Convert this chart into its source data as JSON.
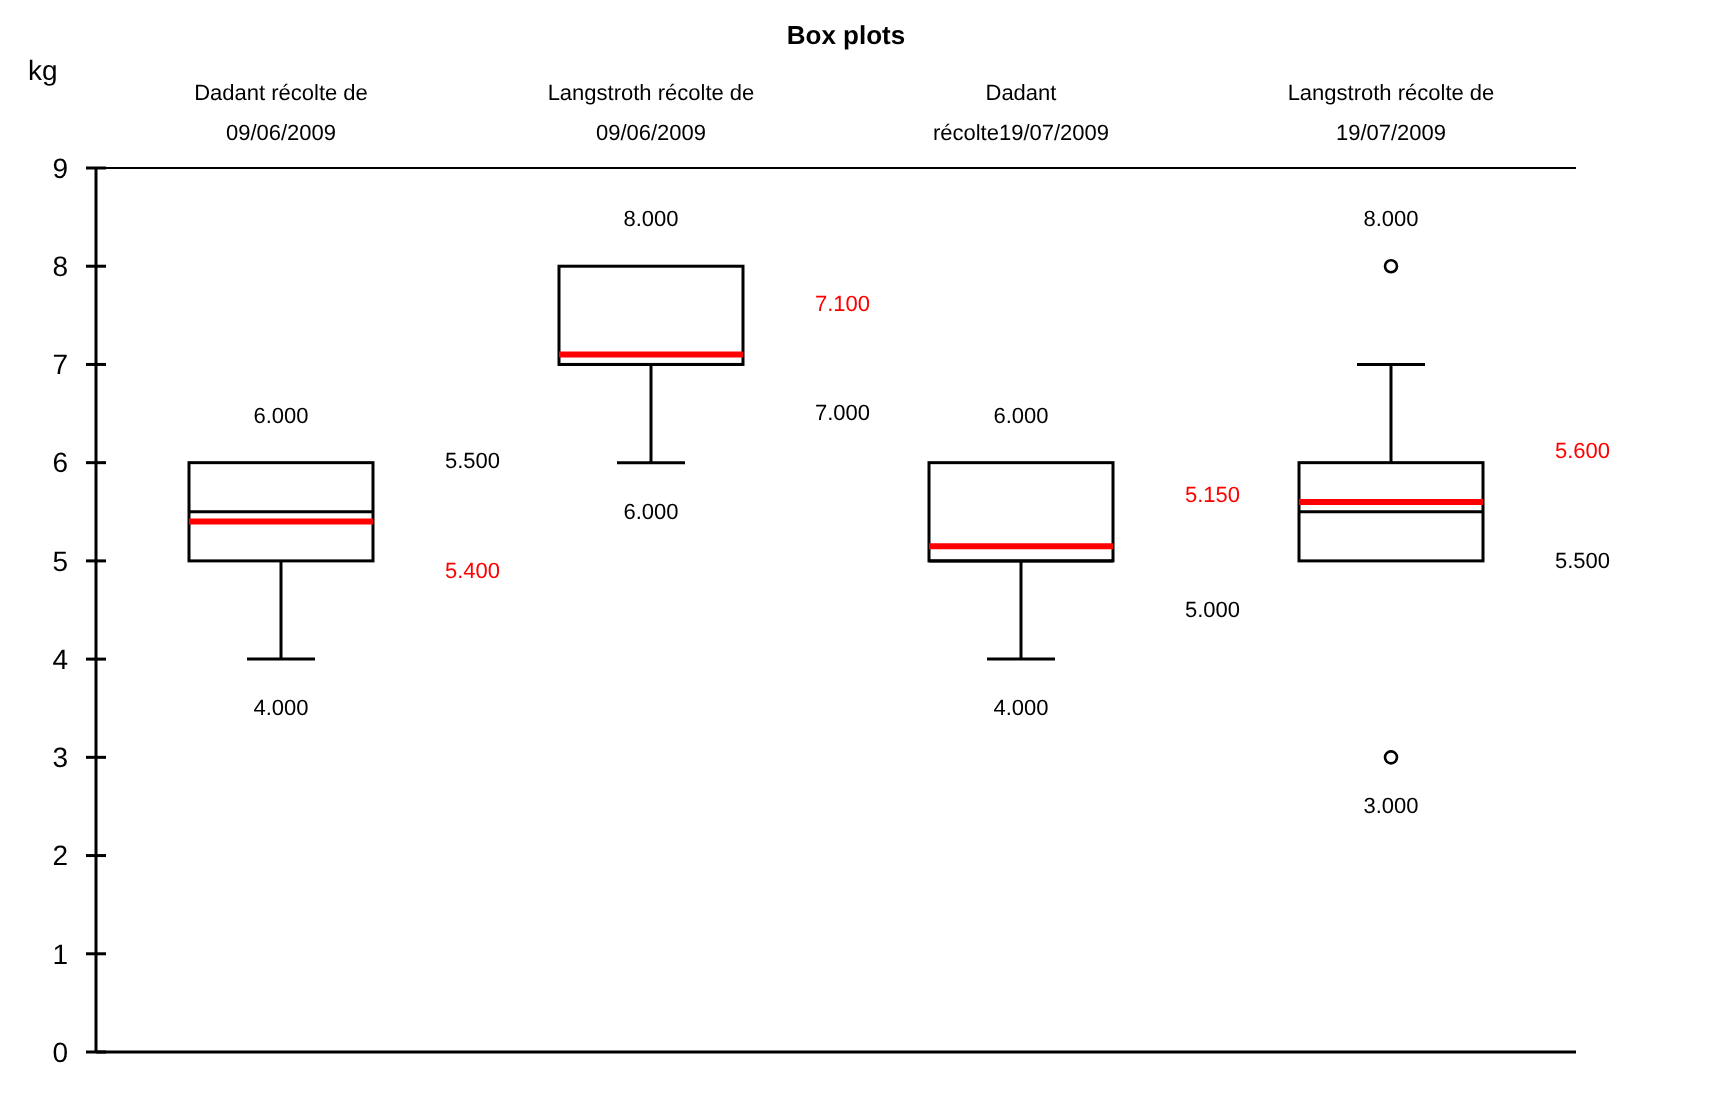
{
  "chart_data": {
    "type": "box",
    "title": "Box plots",
    "ylabel": "kg",
    "categories": [
      "Dadant récolte de 09/06/2009",
      "Langstroth récolte de 09/06/2009",
      "Dadant récolte19/07/2009",
      "Langstroth récolte de 19/07/2009"
    ],
    "boxes": [
      {
        "low": 4,
        "q1": 5,
        "median": 5.5,
        "q3": 6,
        "high": 6,
        "mean": 5.4
      },
      {
        "low": 6,
        "q1": 7,
        "median": 7,
        "q3": 8,
        "high": 8,
        "mean": 7.1
      },
      {
        "low": 4,
        "q1": 5,
        "median": 5,
        "q3": 6,
        "high": 6,
        "mean": 5.15
      },
      {
        "low": 5,
        "q1": 5,
        "median": 5.5,
        "q3": 6,
        "high": 7,
        "mean": 5.6,
        "outliers": [
          8,
          3
        ]
      }
    ],
    "ylim": [
      0,
      9
    ],
    "yticks": [
      0,
      1,
      2,
      3,
      4,
      5,
      6,
      7,
      8,
      9
    ],
    "annotations": [
      "6.000",
      "5.500",
      "5.400",
      "4.000",
      "8.000",
      "7.100",
      "7.000",
      "6.000",
      "6.000",
      "5.150",
      "5.000",
      "4.000",
      "8.000",
      "5.600",
      "5.500",
      "3.000"
    ]
  }
}
